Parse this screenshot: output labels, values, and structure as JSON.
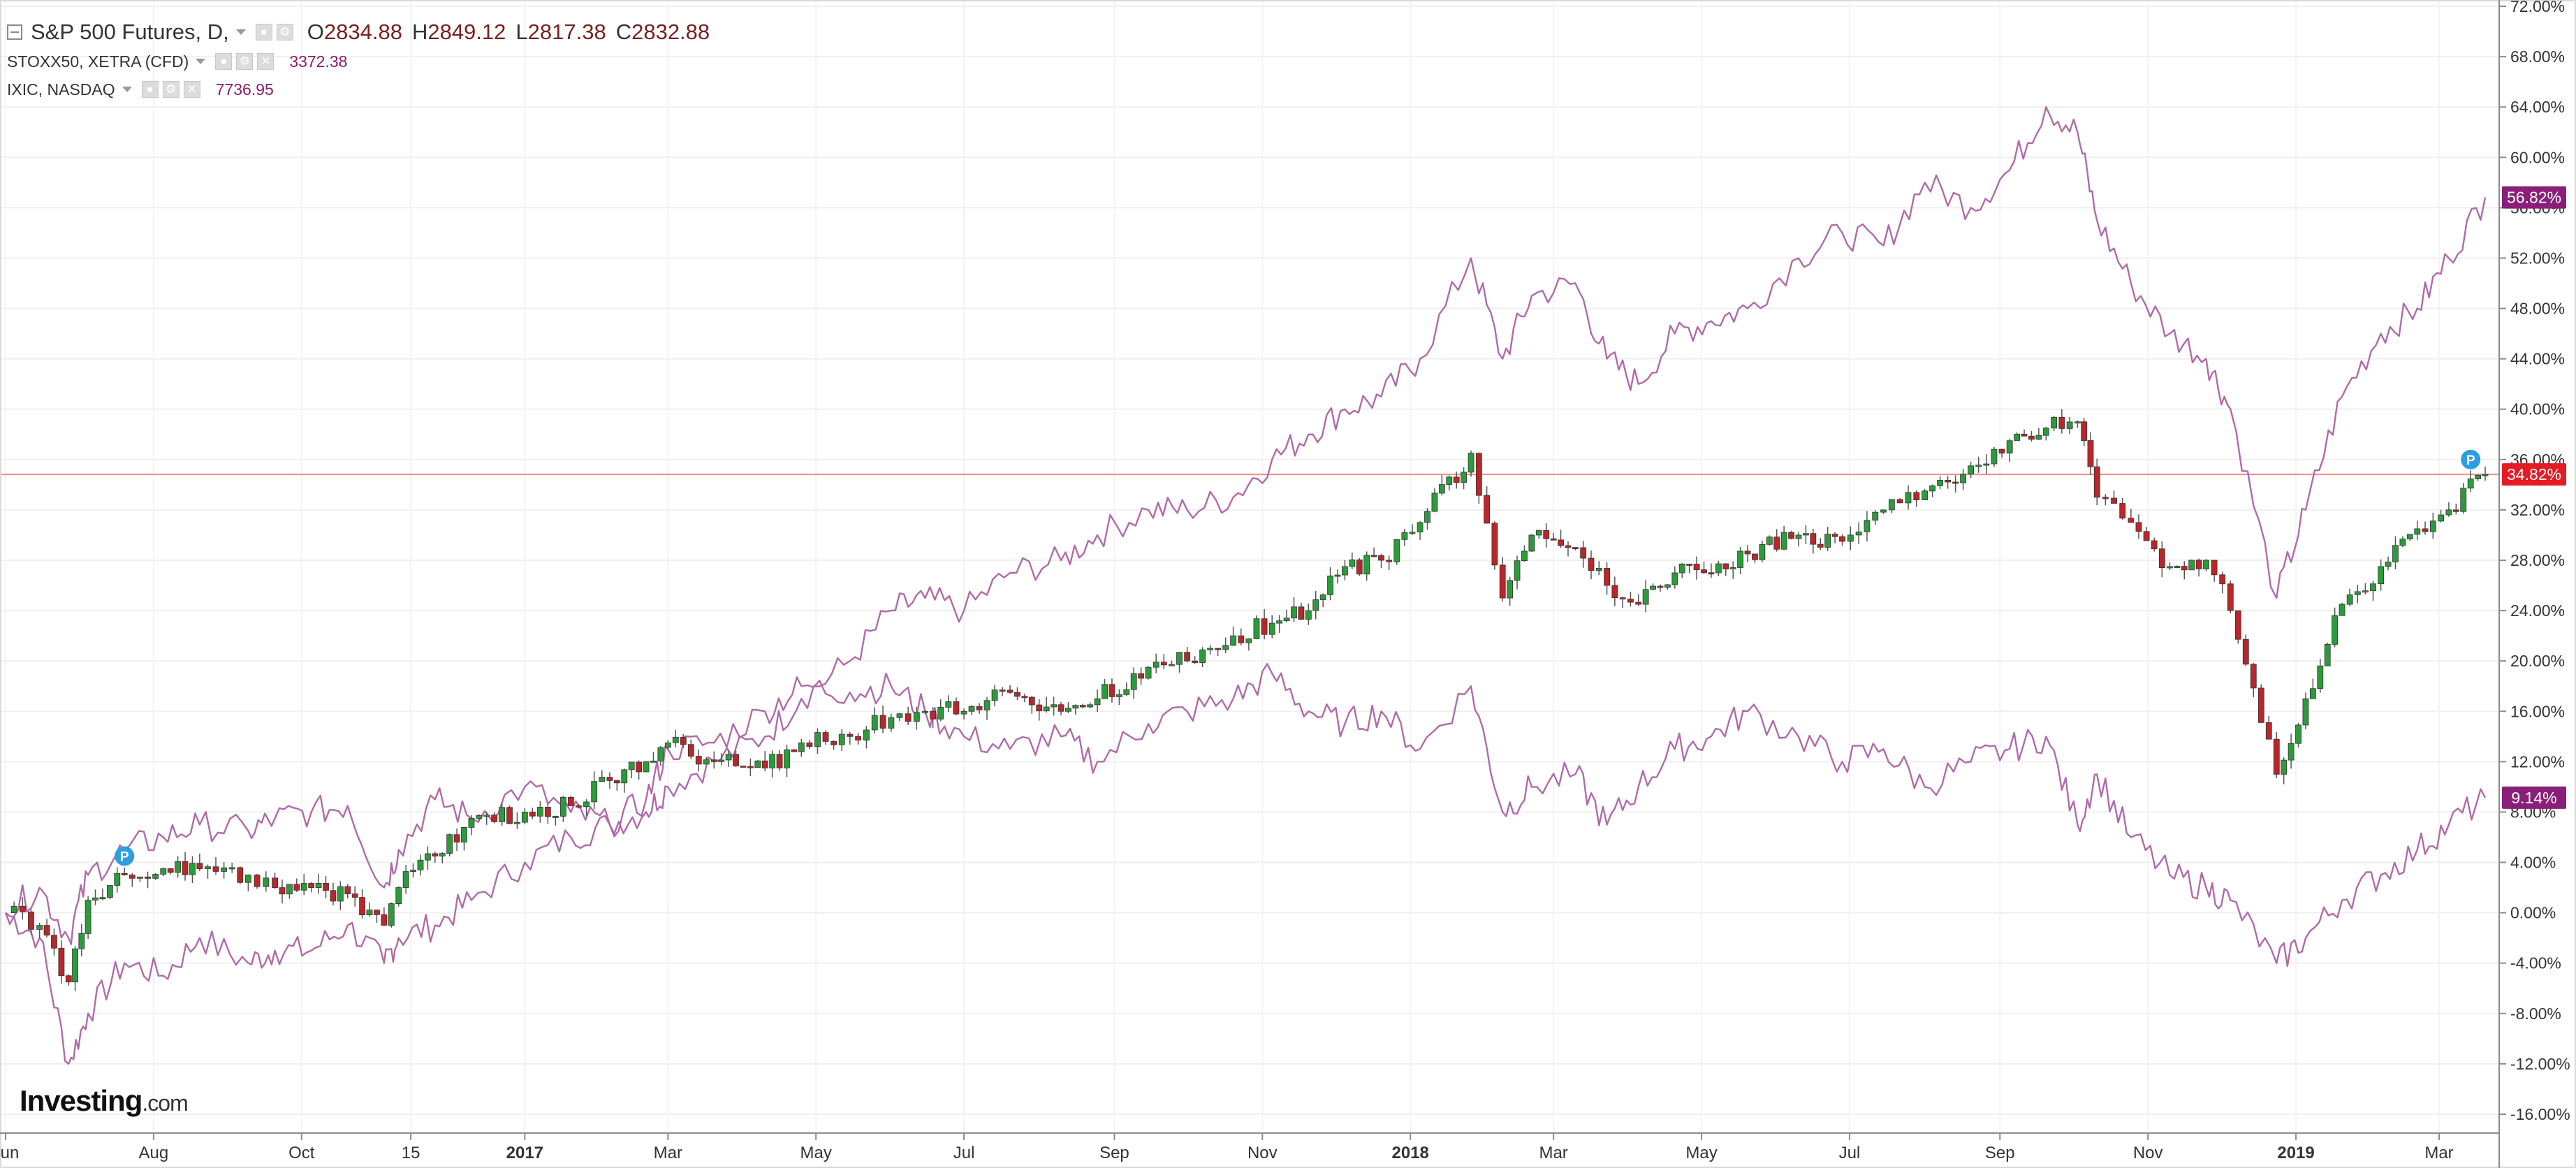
{
  "legend": {
    "main": {
      "symbol": "S&P 500 Futures, D,",
      "o_label": "O",
      "o_value": "2834.88",
      "h_label": "H",
      "h_value": "2849.12",
      "l_label": "L",
      "l_value": "2817.38",
      "c_label": "C",
      "c_value": "2832.88"
    },
    "series2": {
      "name": "STOXX50, XETRA (CFD)",
      "value": "3372.38"
    },
    "series3": {
      "name": "IXIC, NASDAQ",
      "value": "7736.95"
    }
  },
  "logo": {
    "brand": "Investing",
    "suffix": ".com"
  },
  "colors": {
    "up": "#2c9b3c",
    "down": "#b8272a",
    "compare": "#b06aaa",
    "current_line": "#f08a8a",
    "badge_red": "#e51c23",
    "badge_purple": "#8a1f7a",
    "marker": "#2d9ee0"
  },
  "chart_data": {
    "type": "line",
    "title": "",
    "xlabel": "",
    "ylabel": "",
    "ylim": [
      -17.5,
      72.5
    ],
    "xlim": [
      "2016-06-01",
      "2019-03-20"
    ],
    "y_ticks": [
      "72.00%",
      "68.00%",
      "64.00%",
      "60.00%",
      "56.00%",
      "52.00%",
      "48.00%",
      "44.00%",
      "40.00%",
      "36.00%",
      "32.00%",
      "28.00%",
      "24.00%",
      "20.00%",
      "16.00%",
      "12.00%",
      "8.00%",
      "4.00%",
      "0.00%",
      "-4.00%",
      "-8.00%",
      "-12.00%",
      "-16.00%"
    ],
    "y_tick_values": [
      72,
      68,
      64,
      60,
      56,
      52,
      48,
      44,
      40,
      36,
      32,
      28,
      24,
      20,
      16,
      12,
      8,
      4,
      0,
      -4,
      -8,
      -12,
      -16
    ],
    "x_ticks": [
      {
        "label": "Jun",
        "date": "2016-06-01"
      },
      {
        "label": "Aug",
        "date": "2016-08-01"
      },
      {
        "label": "Oct",
        "date": "2016-10-01"
      },
      {
        "label": "15",
        "date": "2016-11-15"
      },
      {
        "label": "2017",
        "date": "2017-01-01"
      },
      {
        "label": "Mar",
        "date": "2017-03-01"
      },
      {
        "label": "May",
        "date": "2017-05-01"
      },
      {
        "label": "Jul",
        "date": "2017-07-01"
      },
      {
        "label": "Sep",
        "date": "2017-09-01"
      },
      {
        "label": "Nov",
        "date": "2017-11-01"
      },
      {
        "label": "2018",
        "date": "2018-01-01"
      },
      {
        "label": "Mar",
        "date": "2018-03-01"
      },
      {
        "label": "May",
        "date": "2018-05-01"
      },
      {
        "label": "Jul",
        "date": "2018-07-01"
      },
      {
        "label": "Sep",
        "date": "2018-09-01"
      },
      {
        "label": "Nov",
        "date": "2018-11-01"
      },
      {
        "label": "2019",
        "date": "2019-01-01"
      },
      {
        "label": "Mar",
        "date": "2019-03-01"
      }
    ],
    "series": [
      {
        "kind": "candlestick",
        "x": [
          "2016-06-01",
          "2016-06-15",
          "2016-06-27",
          "2016-07-05",
          "2016-07-20",
          "2016-08-05",
          "2016-08-20",
          "2016-09-09",
          "2016-09-20",
          "2016-10-05",
          "2016-10-20",
          "2016-11-04",
          "2016-11-10",
          "2016-11-25",
          "2016-12-10",
          "2017-01-01",
          "2017-01-20",
          "2017-02-05",
          "2017-02-20",
          "2017-03-01",
          "2017-03-20",
          "2017-04-10",
          "2017-04-25",
          "2017-05-15",
          "2017-06-01",
          "2017-06-15",
          "2017-07-01",
          "2017-07-20",
          "2017-08-10",
          "2017-08-25",
          "2017-09-15",
          "2017-10-01",
          "2017-10-20",
          "2017-11-05",
          "2017-11-20",
          "2017-12-05",
          "2017-12-20",
          "2018-01-05",
          "2018-01-26",
          "2018-02-08",
          "2018-02-20",
          "2018-03-10",
          "2018-03-23",
          "2018-04-05",
          "2018-04-20",
          "2018-05-05",
          "2018-05-20",
          "2018-06-10",
          "2018-06-28",
          "2018-07-15",
          "2018-08-01",
          "2018-08-20",
          "2018-09-05",
          "2018-09-20",
          "2018-10-03",
          "2018-10-11",
          "2018-10-25",
          "2018-11-10",
          "2018-11-25",
          "2018-12-05",
          "2018-12-24",
          "2019-01-05",
          "2019-01-20",
          "2019-02-05",
          "2019-02-20",
          "2019-03-05",
          "2019-03-20"
        ],
        "y": [
          0.0,
          -1.0,
          -5.5,
          1.0,
          3.0,
          3.5,
          3.5,
          3.0,
          2.0,
          2.0,
          1.5,
          -1.0,
          2.0,
          4.5,
          7.5,
          8.0,
          8.5,
          10.5,
          12.0,
          13.5,
          12.0,
          11.5,
          13.5,
          14.0,
          15.5,
          16.0,
          16.0,
          17.5,
          16.0,
          17.0,
          19.5,
          20.0,
          22.0,
          23.0,
          24.0,
          27.5,
          28.0,
          31.0,
          36.5,
          25.0,
          30.0,
          29.0,
          26.0,
          24.5,
          27.0,
          27.0,
          28.5,
          30.0,
          29.5,
          32.0,
          33.5,
          35.5,
          37.5,
          38.5,
          39.0,
          33.0,
          31.0,
          27.5,
          28.0,
          24.0,
          11.0,
          17.0,
          24.5,
          27.5,
          30.5,
          32.0,
          34.82
        ]
      },
      {
        "kind": "line",
        "x": [
          "2016-06-01",
          "2016-06-15",
          "2016-06-27",
          "2016-07-05",
          "2016-07-20",
          "2016-08-05",
          "2016-08-20",
          "2016-09-09",
          "2016-09-20",
          "2016-10-05",
          "2016-10-20",
          "2016-11-04",
          "2016-11-10",
          "2016-11-25",
          "2016-12-10",
          "2017-01-01",
          "2017-01-20",
          "2017-02-05",
          "2017-02-20",
          "2017-03-01",
          "2017-03-20",
          "2017-04-10",
          "2017-04-25",
          "2017-05-15",
          "2017-06-01",
          "2017-06-15",
          "2017-07-01",
          "2017-07-20",
          "2017-08-10",
          "2017-08-25",
          "2017-09-15",
          "2017-10-01",
          "2017-10-20",
          "2017-11-05",
          "2017-11-20",
          "2017-12-05",
          "2017-12-20",
          "2018-01-05",
          "2018-01-26",
          "2018-02-08",
          "2018-02-20",
          "2018-03-10",
          "2018-03-23",
          "2018-04-05",
          "2018-04-20",
          "2018-05-05",
          "2018-05-20",
          "2018-06-10",
          "2018-06-28",
          "2018-07-15",
          "2018-08-01",
          "2018-08-20",
          "2018-09-05",
          "2018-09-20",
          "2018-10-03",
          "2018-10-11",
          "2018-10-25",
          "2018-11-10",
          "2018-11-25",
          "2018-12-05",
          "2018-12-24",
          "2019-01-05",
          "2019-01-20",
          "2019-02-05",
          "2019-02-20",
          "2019-03-05",
          "2019-03-20"
        ],
        "y": [
          0.0,
          -2.0,
          -12.0,
          -8.0,
          -4.0,
          -5.0,
          -2.0,
          -4.0,
          -3.0,
          -3.0,
          -1.0,
          -4.0,
          -2.0,
          -1.0,
          1.0,
          4.0,
          6.0,
          7.0,
          8.0,
          10.0,
          12.0,
          14.0,
          17.0,
          20.0,
          24.0,
          25.0,
          24.0,
          27.0,
          28.0,
          30.0,
          32.0,
          32.0,
          33.0,
          36.0,
          38.0,
          40.0,
          41.0,
          44.0,
          52.0,
          44.0,
          49.0,
          50.0,
          44.0,
          42.0,
          46.0,
          47.0,
          48.0,
          52.0,
          54.0,
          53.0,
          58.0,
          56.0,
          59.0,
          64.0,
          62.0,
          55.0,
          50.0,
          46.0,
          44.0,
          40.0,
          25.0,
          32.0,
          41.0,
          46.0,
          48.0,
          52.0,
          56.82
        ]
      },
      {
        "kind": "line",
        "x": [
          "2016-06-01",
          "2016-06-15",
          "2016-06-27",
          "2016-07-05",
          "2016-07-20",
          "2016-08-05",
          "2016-08-20",
          "2016-09-09",
          "2016-09-20",
          "2016-10-05",
          "2016-10-20",
          "2016-11-04",
          "2016-11-10",
          "2016-11-25",
          "2016-12-10",
          "2017-01-01",
          "2017-01-20",
          "2017-02-05",
          "2017-02-20",
          "2017-03-01",
          "2017-03-20",
          "2017-04-10",
          "2017-04-25",
          "2017-05-15",
          "2017-06-01",
          "2017-06-15",
          "2017-07-01",
          "2017-07-20",
          "2017-08-10",
          "2017-08-25",
          "2017-09-15",
          "2017-10-01",
          "2017-10-20",
          "2017-11-05",
          "2017-11-20",
          "2017-12-05",
          "2017-12-20",
          "2018-01-05",
          "2018-01-26",
          "2018-02-08",
          "2018-02-20",
          "2018-03-10",
          "2018-03-23",
          "2018-04-05",
          "2018-04-20",
          "2018-05-05",
          "2018-05-20",
          "2018-06-10",
          "2018-06-28",
          "2018-07-15",
          "2018-08-01",
          "2018-08-20",
          "2018-09-05",
          "2018-09-20",
          "2018-10-03",
          "2018-10-11",
          "2018-10-25",
          "2018-11-10",
          "2018-11-25",
          "2018-12-05",
          "2018-12-24",
          "2019-01-05",
          "2019-01-20",
          "2019-02-05",
          "2019-02-20",
          "2019-03-05",
          "2019-03-20"
        ],
        "y": [
          0.0,
          2.0,
          -2.0,
          3.0,
          5.0,
          6.0,
          7.0,
          6.5,
          7.5,
          8.0,
          8.5,
          2.0,
          5.0,
          9.0,
          7.5,
          10.0,
          8.0,
          7.0,
          9.0,
          13.0,
          13.5,
          16.0,
          18.0,
          17.5,
          18.0,
          16.0,
          14.0,
          13.0,
          14.0,
          12.0,
          15.0,
          16.0,
          17.0,
          19.0,
          16.0,
          15.0,
          16.0,
          13.0,
          18.0,
          8.0,
          10.0,
          11.0,
          7.0,
          10.0,
          13.0,
          14.0,
          16.0,
          14.0,
          12.0,
          13.0,
          10.0,
          12.0,
          13.0,
          14.0,
          7.0,
          11.0,
          6.0,
          3.0,
          2.0,
          1.0,
          -4.0,
          -2.0,
          1.0,
          3.0,
          5.0,
          7.0,
          9.14
        ]
      }
    ],
    "badges": [
      {
        "text": "56.82%",
        "value": 56.82,
        "color": "purple"
      },
      {
        "text": "34.82%",
        "value": 34.82,
        "color": "red"
      },
      {
        "text": "9.14%",
        "value": 9.14,
        "color": "purple"
      }
    ],
    "markers": [
      {
        "text": "P",
        "date": "2016-07-20",
        "value": 4.5
      },
      {
        "text": "P",
        "date": "2019-03-14",
        "value": 36.0
      }
    ],
    "current_value": 34.82,
    "grid": true
  }
}
